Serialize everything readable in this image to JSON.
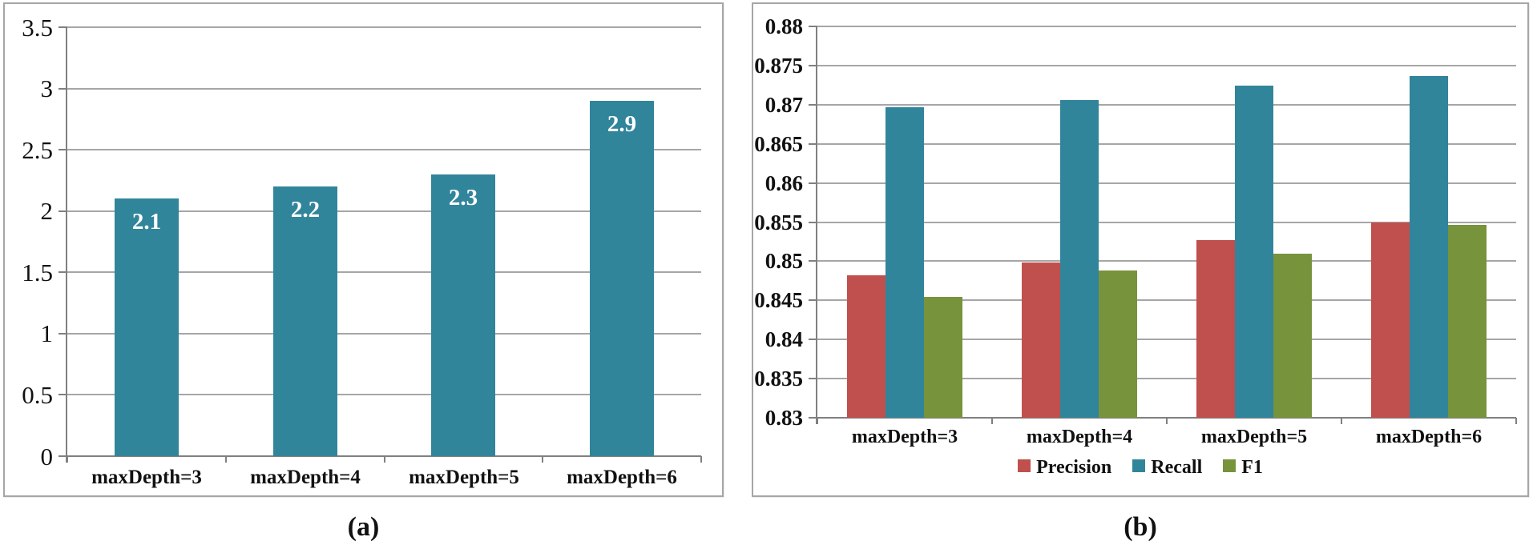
{
  "captions": {
    "a": "(a)",
    "b": "(b)"
  },
  "palette": {
    "bar_teal": "#31859B",
    "bar_red": "#C0504D",
    "bar_green": "#77933C",
    "gridline": "#A6A6A6",
    "axis_line": "#808080",
    "panel_border": "#A6A6A6",
    "bar_value_label": "#FFFFFF",
    "text": "#111111",
    "background": "#FFFFFF"
  },
  "chart_data": [
    {
      "id": "a",
      "type": "bar",
      "title": "",
      "categories": [
        "maxDepth=3",
        "maxDepth=4",
        "maxDepth=5",
        "maxDepth=6"
      ],
      "series": [
        {
          "name": "value",
          "color": "bar_teal",
          "values": [
            2.1,
            2.2,
            2.3,
            2.9
          ],
          "data_labels": [
            "2.1",
            "2.2",
            "2.3",
            "2.9"
          ]
        }
      ],
      "ylim": [
        0,
        3.5
      ],
      "ytick_labels": [
        "3.5",
        "3",
        "2.5",
        "2",
        "1.5",
        "1",
        "0.5",
        "0"
      ],
      "grid": true,
      "legend_position": null
    },
    {
      "id": "b",
      "type": "bar",
      "title": "",
      "categories": [
        "maxDepth=3",
        "maxDepth=4",
        "maxDepth=5",
        "maxDepth=6"
      ],
      "series": [
        {
          "name": "Precision",
          "color": "bar_red",
          "values": [
            0.8482,
            0.8498,
            0.8527,
            0.8549
          ]
        },
        {
          "name": "Recall",
          "color": "bar_teal",
          "values": [
            0.8697,
            0.8706,
            0.8724,
            0.8737
          ]
        },
        {
          "name": "F1",
          "color": "bar_green",
          "values": [
            0.8454,
            0.8488,
            0.851,
            0.8546
          ]
        }
      ],
      "ylim": [
        0.83,
        0.88
      ],
      "ytick_labels": [
        "0.88",
        "0.875",
        "0.87",
        "0.865",
        "0.86",
        "0.855",
        "0.85",
        "0.845",
        "0.84",
        "0.835",
        "0.83"
      ],
      "grid": true,
      "legend_position": "bottom"
    }
  ]
}
